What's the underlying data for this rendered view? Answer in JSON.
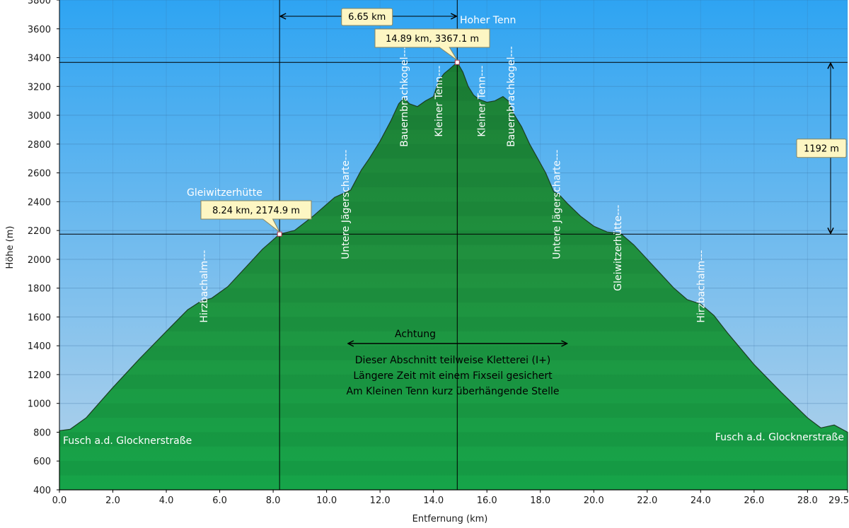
{
  "chart_data": {
    "type": "area",
    "xlabel": "Entfernung  (km)",
    "ylabel": "Höhe (m)",
    "xlim": [
      0,
      29.5
    ],
    "ylim": [
      400,
      3800
    ],
    "x_ticks": [
      0.0,
      2.0,
      4.0,
      6.0,
      8.0,
      10.0,
      12.0,
      14.0,
      16.0,
      18.0,
      20.0,
      22.0,
      24.0,
      26.0,
      28.0,
      29.5
    ],
    "x_tick_labels": [
      "0.0",
      "2.0",
      "4.0",
      "6.0",
      "8.0",
      "10.0",
      "12.0",
      "14.0",
      "16.0",
      "18.0",
      "20.0",
      "22.0",
      "24.0",
      "26.0",
      "28.0",
      "29.5"
    ],
    "y_ticks": [
      400,
      600,
      800,
      1000,
      1200,
      1400,
      1600,
      1800,
      2000,
      2200,
      2400,
      2600,
      2800,
      3000,
      3200,
      3400,
      3600,
      3800
    ],
    "grid": true,
    "colors": {
      "sky_top": "#2ea4f2",
      "sky_bottom": "#b3d4ee",
      "fill_top": "#1f8a3a",
      "fill_bottom": "#14a64a",
      "line": "#1a3a1a"
    },
    "series": [
      {
        "x": [
          0.0,
          0.4,
          1.0,
          2.0,
          3.0,
          4.0,
          4.8,
          5.3,
          5.7,
          6.3,
          7.0,
          7.6,
          8.24,
          8.8,
          9.5,
          10.3,
          10.9,
          11.3,
          11.6,
          12.0,
          12.4,
          12.7,
          12.9,
          13.1,
          13.4,
          13.7,
          14.0,
          14.2,
          14.4,
          14.6,
          14.89,
          15.1,
          15.3,
          15.5,
          15.7,
          16.0,
          16.3,
          16.6,
          16.8,
          17.0,
          17.3,
          17.6,
          17.9,
          18.2,
          18.5,
          18.7,
          19.0,
          19.5,
          20.0,
          20.5,
          21.0,
          21.5,
          22.0,
          22.5,
          23.0,
          23.5,
          24.0,
          24.5,
          25.0,
          26.0,
          27.0,
          28.0,
          28.5,
          29.0,
          29.5
        ],
        "y": [
          810,
          820,
          900,
          1110,
          1310,
          1500,
          1650,
          1710,
          1730,
          1810,
          1950,
          2070,
          2174.9,
          2200,
          2300,
          2430,
          2480,
          2620,
          2700,
          2820,
          2960,
          3080,
          3120,
          3080,
          3060,
          3100,
          3130,
          3240,
          3290,
          3320,
          3367.1,
          3300,
          3200,
          3140,
          3110,
          3090,
          3100,
          3130,
          3100,
          3010,
          2920,
          2800,
          2700,
          2600,
          2470,
          2450,
          2390,
          2300,
          2230,
          2190,
          2180,
          2100,
          2000,
          1900,
          1800,
          1720,
          1690,
          1610,
          1490,
          1270,
          1080,
          900,
          830,
          850,
          800
        ]
      }
    ],
    "markers": [
      {
        "x": 8.24,
        "y": 2174.9,
        "label": "8.24 km, 2174.9 m",
        "name": "Gleiwitzerhütte"
      },
      {
        "x": 14.89,
        "y": 3367.1,
        "label": "14.89 km, 3367.1 m",
        "name": "Hoher Tenn"
      }
    ],
    "distance_label": "6.65 km",
    "elevation_diff_label": "1192 m",
    "point_labels": [
      {
        "text": "Hirzbachalm---",
        "x": 5.4,
        "y": 1560
      },
      {
        "text": "Untere Jägerscharte---",
        "x": 10.7,
        "y": 2000
      },
      {
        "text": "Bauernbrachkogel---",
        "x": 12.9,
        "y": 2780
      },
      {
        "text": "Kleiner Tenn---",
        "x": 14.2,
        "y": 2850
      },
      {
        "text": "Kleiner Tenn---",
        "x": 15.8,
        "y": 2850
      },
      {
        "text": "Bauernbrachkogel---",
        "x": 16.9,
        "y": 2780
      },
      {
        "text": "Untere Jägerscharte---",
        "x": 18.6,
        "y": 2000
      },
      {
        "text": "Gleiwitzerhütte---",
        "x": 20.9,
        "y": 1780
      },
      {
        "text": "Hirzbachalm---",
        "x": 24.0,
        "y": 1560
      }
    ],
    "annotations": {
      "start_label": "Fusch a.d. Glocknerstraße",
      "end_label": "Fusch a.d. Glocknerstraße",
      "summit_label": "Hoher Tenn",
      "hut_label": "Gleiwitzerhütte",
      "achtung_title": "Achtung",
      "achtung_lines": [
        "Dieser Abschnitt teilweise Kletterei (I+)",
        "Längere Zeit mit einem Fixseil gesichert",
        "Am Kleinen Tenn kurz überhängende Stelle"
      ],
      "achtung_range": [
        10.8,
        19.0
      ]
    }
  }
}
